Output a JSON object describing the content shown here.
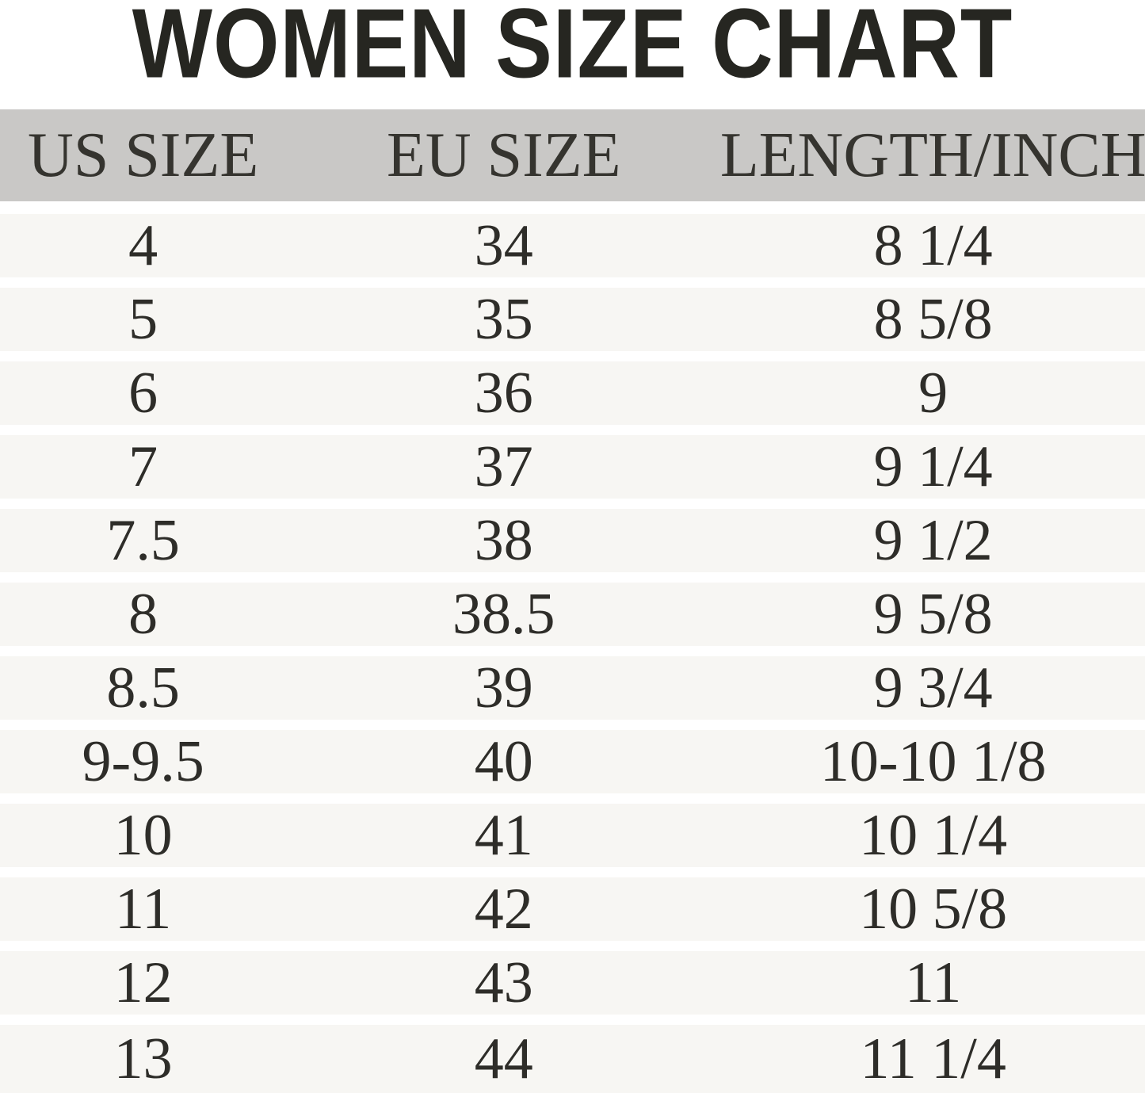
{
  "title": "WOMEN SIZE CHART",
  "chart_data": {
    "type": "table",
    "title": "WOMEN SIZE CHART",
    "columns": [
      "US SIZE",
      "EU SIZE",
      "LENGTH/INCH"
    ],
    "rows": [
      [
        "4",
        "34",
        "8 1/4"
      ],
      [
        "5",
        "35",
        "8 5/8"
      ],
      [
        "6",
        "36",
        "9"
      ],
      [
        "7",
        "37",
        "9 1/4"
      ],
      [
        "7.5",
        "38",
        "9 1/2"
      ],
      [
        "8",
        "38.5",
        "9 5/8"
      ],
      [
        "8.5",
        "39",
        "9 3/4"
      ],
      [
        "9-9.5",
        "40",
        "10-10 1/8"
      ],
      [
        "10",
        "41",
        "10 1/4"
      ],
      [
        "11",
        "42",
        "10 5/8"
      ],
      [
        "12",
        "43",
        "11"
      ],
      [
        "13",
        "44",
        "11 1/4"
      ]
    ],
    "layout": {
      "header_position": "top",
      "row_striping": "uniform bands separated by white gaps",
      "alignment": "center"
    }
  },
  "colors": {
    "title_color": "#262621",
    "header_bg": "#c9c8c6",
    "header_text": "#35342f",
    "row_bg": "#f7f6f3",
    "gap_bg": "#ffffff",
    "cell_text": "#2e2d29"
  }
}
